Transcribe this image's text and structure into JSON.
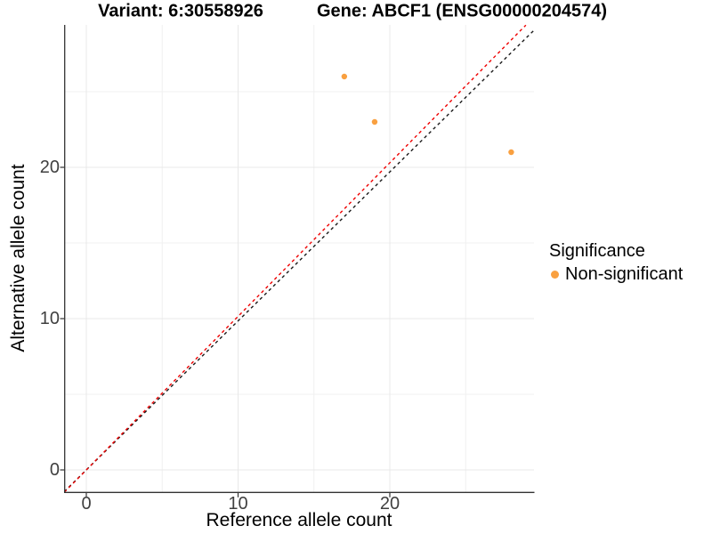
{
  "header": {
    "variant_title": "Variant: 6:30558926",
    "gene_title": "Gene: ABCF1 (ENSG00000204574)"
  },
  "chart_data": {
    "type": "scatter",
    "title": "Variant: 6:30558926 | Gene: ABCF1 (ENSG00000204574)",
    "xlabel": "Reference allele count",
    "ylabel": "Alternative allele count",
    "xlim": [
      -1.45,
      29.5
    ],
    "ylim": [
      -1.5,
      29.4
    ],
    "x_ticks": [
      0,
      10,
      20
    ],
    "y_ticks": [
      0,
      10,
      20
    ],
    "x_minor_ticks": [
      5,
      15,
      25
    ],
    "y_minor_ticks": [
      5,
      15,
      25
    ],
    "grid": true,
    "legend_position": "right",
    "series": [
      {
        "name": "Non-significant",
        "color": "#F9A040",
        "points": [
          {
            "x": 17,
            "y": 26
          },
          {
            "x": 19,
            "y": 23
          },
          {
            "x": 28,
            "y": 21
          }
        ]
      }
    ],
    "lines": [
      {
        "name": "black-dashed-line",
        "slope": 0.985,
        "intercept": 0,
        "color": "#1A1A1A",
        "style": "dashed"
      },
      {
        "name": "red-dashed-line",
        "slope": 1.015,
        "intercept": 0,
        "color": "#EE0000",
        "style": "dashed"
      }
    ],
    "legend": {
      "title": "Significance",
      "items": [
        {
          "label": "Non-significant",
          "color": "#F9A040"
        }
      ]
    },
    "colors": {
      "major_grid": "#E8E8E8",
      "minor_grid": "#F0F0F0",
      "axis_line": "#333333",
      "tick_label": "#404040"
    }
  }
}
